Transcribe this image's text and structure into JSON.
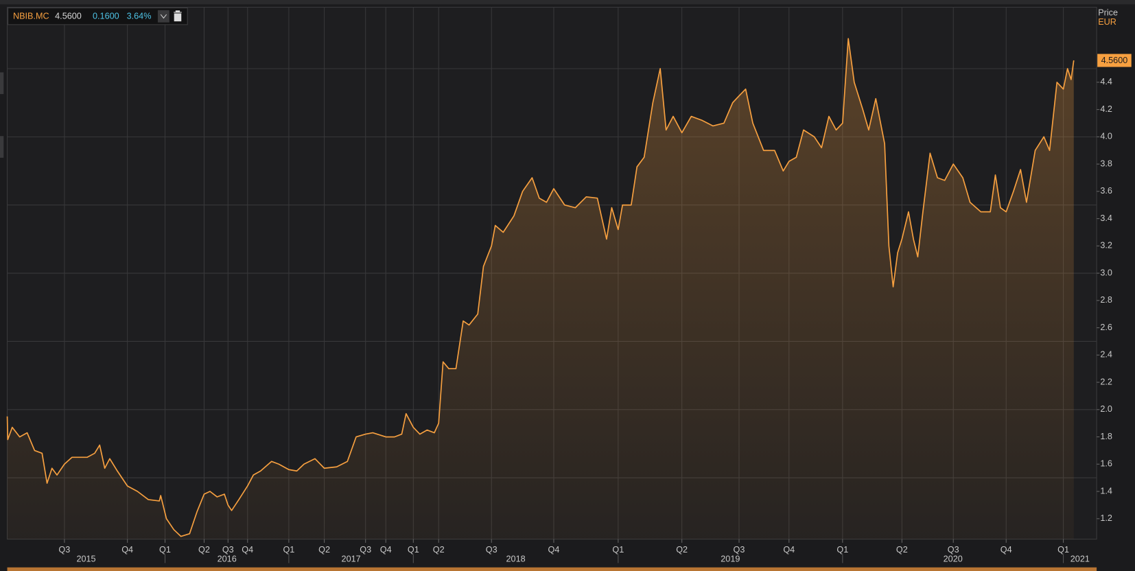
{
  "chart_data": {
    "type": "line",
    "header": {
      "price": "4.5600",
      "change": "0.1600",
      "change_pct": "3.64%"
    },
    "axis_label": "Price",
    "currency": "EUR",
    "xlim": [
      2015.27,
      2021.15
    ],
    "xticks": [
      {
        "value": 2015.5,
        "label": "Q3"
      },
      {
        "value": 2015.75,
        "label": "Q4"
      },
      {
        "value": 2016.0,
        "label": "Q1"
      },
      {
        "value": 2016.25,
        "label": "Q2"
      },
      {
        "value": 2016.5,
        "label": "Q3"
      },
      {
        "value": 2016.75,
        "label": "Q4"
      },
      {
        "value": 2017.0,
        "label": "Q1"
      },
      {
        "value": 2017.25,
        "label": "Q2"
      },
      {
        "value": 2017.5,
        "label": "Q3"
      },
      {
        "value": 2017.75,
        "label": "Q4"
      },
      {
        "value": 2018.0,
        "label": "Q1"
      },
      {
        "value": 2018.25,
        "label": "Q2"
      },
      {
        "value": 2018.5,
        "label": "Q3"
      },
      {
        "value": 2018.75,
        "label": "Q4"
      },
      {
        "value": 2019.0,
        "label": "Q1"
      },
      {
        "value": 2019.25,
        "label": "Q2"
      },
      {
        "value": 2019.5,
        "label": "Q3"
      },
      {
        "value": 2019.75,
        "label": "Q4"
      },
      {
        "value": 2020.0,
        "label": "Q1"
      },
      {
        "value": 2020.25,
        "label": "Q2"
      },
      {
        "value": 2020.5,
        "label": "Q3"
      },
      {
        "value": 2020.75,
        "label": "Q4"
      },
      {
        "value": 2021.0,
        "label": "Q1"
      }
    ],
    "years": [
      "2015",
      "2016",
      "2017",
      "2018",
      "2019",
      "2020",
      "2021"
    ],
    "ylim": [
      1.05,
      4.95
    ],
    "yticks": [
      1.2,
      1.4,
      1.6,
      1.8,
      {
        "value": 2,
        "label": "2.0"
      },
      2.2,
      2.4,
      2.6,
      2.8,
      {
        "value": 3,
        "label": "3.0"
      },
      3.2,
      3.4,
      3.6,
      3.8,
      {
        "value": 4,
        "label": "4.0"
      },
      4.2,
      4.4
    ],
    "ygrid": [
      1.5,
      2,
      2.5,
      3,
      3.5,
      4,
      4.5
    ],
    "grid": true,
    "x": [
      2015.27,
      2015.272,
      2015.29,
      2015.32,
      2015.35,
      2015.38,
      2015.41,
      2015.43,
      2015.45,
      2015.47,
      2015.5,
      2015.53,
      2015.59,
      2015.62,
      2015.64,
      2015.66,
      2015.68,
      2015.71,
      2015.75,
      2015.817,
      2015.889,
      2015.962,
      2015.971,
      2016.009,
      2016.056,
      2016.102,
      2016.157,
      2016.204,
      2016.25,
      2016.311,
      2016.386,
      2016.462,
      2016.5,
      2016.546,
      2016.639,
      2016.75,
      2016.785,
      2016.829,
      2016.895,
      2016.939,
      2017.0,
      2017.056,
      2017.107,
      2017.184,
      2017.25,
      2017.325,
      2017.39,
      2017.443,
      2017.5,
      2017.589,
      2017.75,
      2017.829,
      2017.895,
      2017.934,
      2018.0,
      2018.064,
      2018.136,
      2018.207,
      2018.25,
      2018.271,
      2018.298,
      2018.332,
      2018.366,
      2018.394,
      2018.435,
      2018.462,
      2018.5,
      2018.515,
      2018.547,
      2018.59,
      2018.625,
      2018.663,
      2018.692,
      2018.721,
      2018.75,
      2018.792,
      2018.834,
      2018.876,
      2018.919,
      2018.955,
      2018.975,
      2019.0,
      2019.017,
      2019.051,
      2019.074,
      2019.102,
      2019.136,
      2019.165,
      2019.188,
      2019.216,
      2019.25,
      2019.291,
      2019.339,
      2019.386,
      2019.434,
      2019.472,
      2019.5,
      2019.533,
      2019.569,
      2019.623,
      2019.678,
      2019.721,
      2019.75,
      2019.784,
      2019.818,
      2019.868,
      2019.902,
      2019.936,
      2019.97,
      2020.0,
      2020.024,
      2020.049,
      2020.085,
      2020.11,
      2020.14,
      2020.177,
      2020.195,
      2020.213,
      2020.232,
      2020.25,
      2020.282,
      2020.306,
      2020.327,
      2020.352,
      2020.387,
      2020.423,
      2020.458,
      2020.5,
      2020.545,
      2020.579,
      2020.63,
      2020.675,
      2020.699,
      2020.723,
      2020.75,
      2020.782,
      2020.813,
      2020.839,
      2020.877,
      2020.915,
      2020.94,
      2020.972,
      2021.0,
      2021.019,
      2021.035,
      2021.047
    ],
    "series": [
      {
        "name": "NBIB.MC",
        "color": "#f7a040",
        "values": [
          1.95,
          1.78,
          1.87,
          1.8,
          1.83,
          1.7,
          1.68,
          1.46,
          1.57,
          1.52,
          1.6,
          1.65,
          1.65,
          1.68,
          1.74,
          1.57,
          1.64,
          1.55,
          1.44,
          1.4,
          1.34,
          1.33,
          1.37,
          1.2,
          1.12,
          1.07,
          1.09,
          1.25,
          1.38,
          1.4,
          1.36,
          1.38,
          1.3,
          1.26,
          1.34,
          1.44,
          1.52,
          1.55,
          1.62,
          1.6,
          1.56,
          1.55,
          1.6,
          1.64,
          1.57,
          1.58,
          1.62,
          1.8,
          1.82,
          1.83,
          1.8,
          1.8,
          1.82,
          1.97,
          1.87,
          1.82,
          1.85,
          1.83,
          1.9,
          2.35,
          2.3,
          2.3,
          2.65,
          2.62,
          2.7,
          3.05,
          3.2,
          3.35,
          3.3,
          3.42,
          3.6,
          3.7,
          3.55,
          3.52,
          3.62,
          3.5,
          3.48,
          3.56,
          3.55,
          3.25,
          3.48,
          3.32,
          3.5,
          3.5,
          3.78,
          3.85,
          4.25,
          4.5,
          4.05,
          4.15,
          4.03,
          4.15,
          4.12,
          4.08,
          4.1,
          4.25,
          4.3,
          4.35,
          4.1,
          3.9,
          3.9,
          3.75,
          3.82,
          3.85,
          4.05,
          4,
          3.92,
          4.15,
          4.05,
          4.1,
          4.72,
          4.4,
          4.2,
          4.05,
          4.28,
          3.95,
          3.2,
          2.9,
          3.15,
          3.25,
          3.45,
          3.25,
          3.12,
          3.45,
          3.88,
          3.7,
          3.68,
          3.8,
          3.7,
          3.52,
          3.45,
          3.45,
          3.72,
          3.48,
          3.45,
          3.6,
          3.76,
          3.52,
          3.9,
          4,
          3.9,
          4.4,
          4.35,
          4.5,
          4.42,
          4.56
        ]
      }
    ]
  }
}
